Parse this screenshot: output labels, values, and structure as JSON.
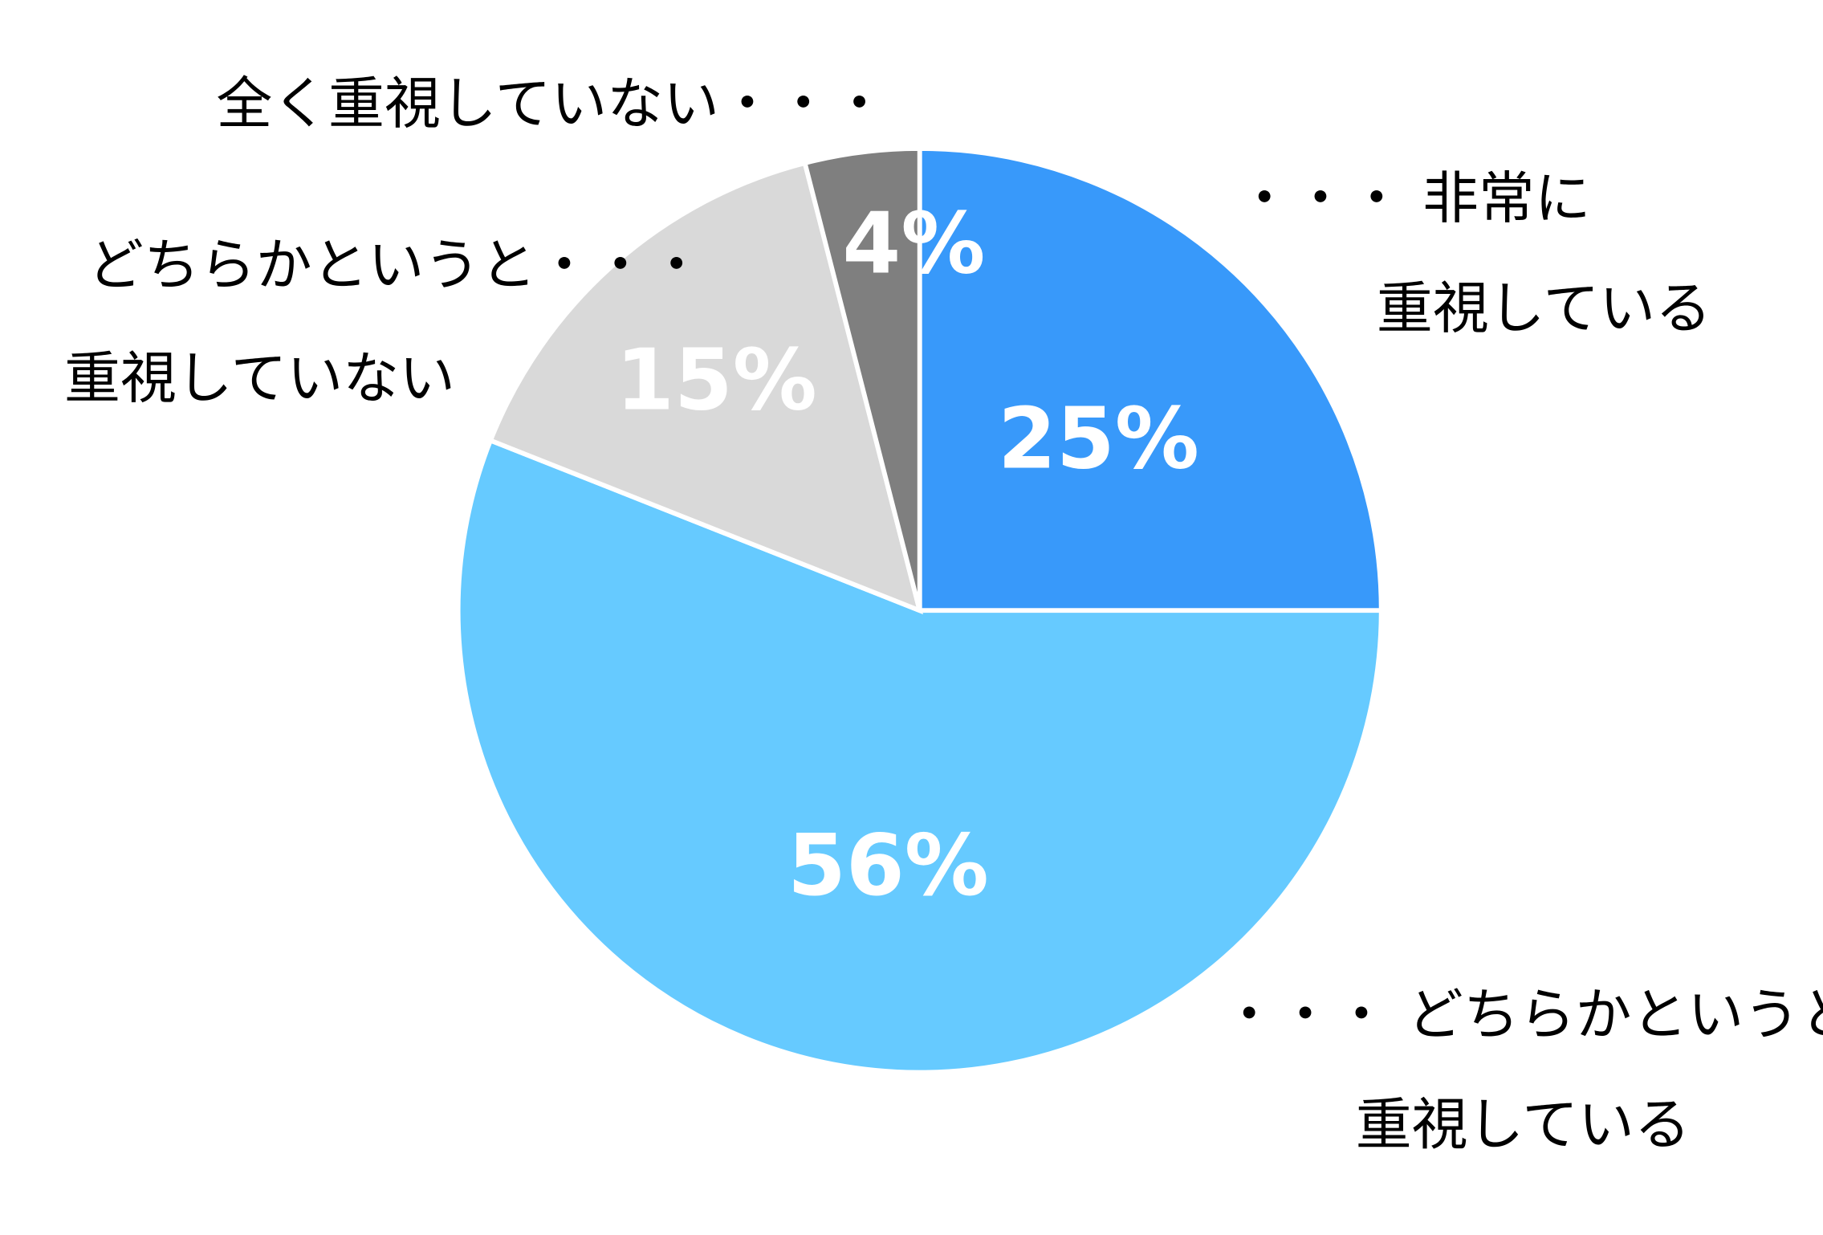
{
  "chart_data": {
    "type": "pie",
    "start_angle": "top",
    "direction": "clockwise",
    "slices": [
      {
        "label_lines": [
          "・・・ 非常に",
          "重視している"
        ],
        "value": 25,
        "value_label": "25%",
        "color": "#3899FA"
      },
      {
        "label_lines": [
          "・・・ どちらかというと",
          "重視している"
        ],
        "value": 56,
        "value_label": "56%",
        "color": "#66CAFF"
      },
      {
        "label_lines": [
          "どちらかというと・・・",
          "重視していない"
        ],
        "value": 15,
        "value_label": "15%",
        "color": "#D9D9D9"
      },
      {
        "label_lines": [
          "全く重視していない・・・"
        ],
        "value": 4,
        "value_label": "4%",
        "color": "#7F7F7F"
      }
    ]
  }
}
